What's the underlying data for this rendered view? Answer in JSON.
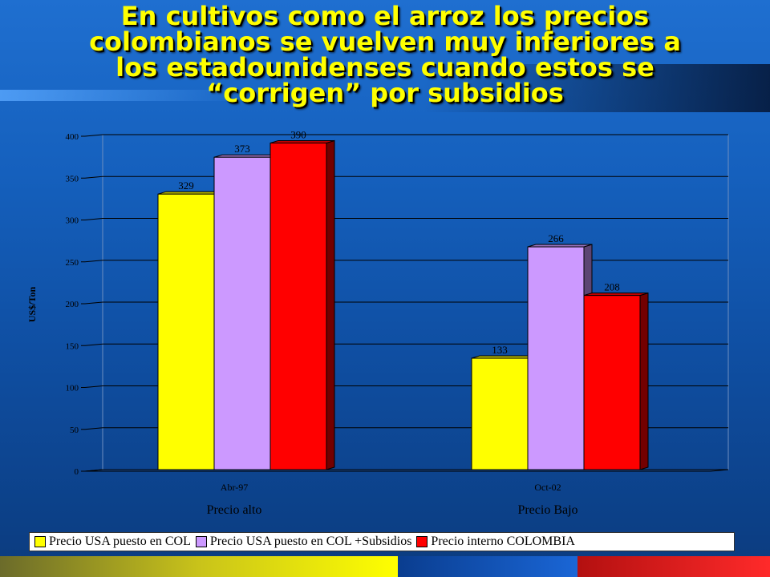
{
  "slide": {
    "title_lines": [
      "En cultivos como el arroz los precios",
      "colombianos se vuelven muy inferiores a",
      "los estadounidenses cuando estos se",
      "“corrigen” por subsidios"
    ]
  },
  "chart_data": {
    "type": "bar",
    "categories": [
      "Abr-97",
      "Oct-02"
    ],
    "category_sublabels": [
      "Precio alto",
      "Precio Bajo"
    ],
    "ylabel": "US$/Ton",
    "ylim": [
      0,
      400
    ],
    "yticks": [
      0,
      50,
      100,
      150,
      200,
      250,
      300,
      350,
      400
    ],
    "grid": true,
    "legend_position": "bottom",
    "series": [
      {
        "name": "Precio USA puesto en COL",
        "values": [
          329,
          133
        ],
        "color": "#ffff00"
      },
      {
        "name": "Precio USA puesto en COL +Subsidios",
        "values": [
          373,
          266
        ],
        "color": "#cc99ff"
      },
      {
        "name": "Precio interno COLOMBIA",
        "values": [
          390,
          208
        ],
        "color": "#ff0000"
      }
    ]
  }
}
